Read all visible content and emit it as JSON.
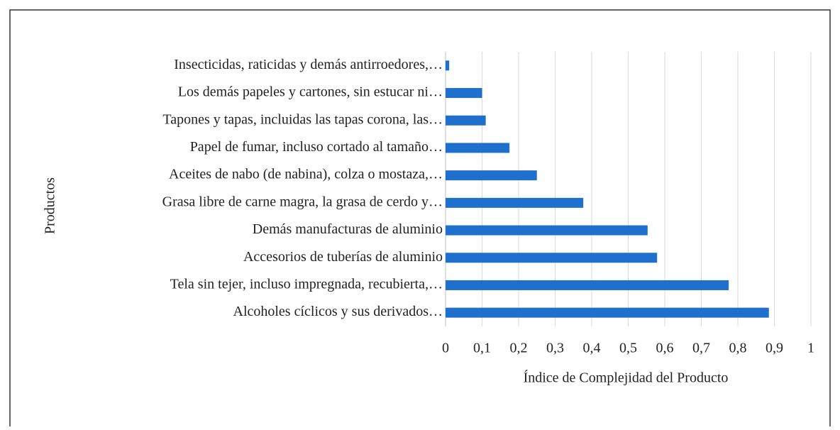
{
  "chart_data": {
    "type": "barh",
    "categories": [
      "Alcoholes cíclicos y sus derivados…",
      "Tela sin tejer, incluso impregnada, recubierta,…",
      "Accesorios de tuberías de aluminio",
      "Demás manufacturas de aluminio",
      "Grasa libre de carne magra, la grasa de cerdo y…",
      "Aceites de nabo (de nabina), colza o mostaza,…",
      "Papel de fumar, incluso cortado al tamaño…",
      "Tapones y tapas, incluidas las tapas corona, las…",
      "Los demás papeles y cartones, sin estucar ni…",
      "Insecticidas, raticidas y demás antirroedores,…"
    ],
    "values": [
      0.885,
      0.775,
      0.579,
      0.553,
      0.377,
      0.25,
      0.175,
      0.11,
      0.1,
      0.01
    ],
    "color": "#1f6fcc",
    "xlim": [
      0,
      1
    ],
    "xticks": [
      0,
      {
        "value": 0.1,
        "label": "0,1"
      },
      {
        "value": 0.2,
        "label": "0,2"
      },
      {
        "value": 0.3,
        "label": "0,3"
      },
      {
        "value": 0.4,
        "label": "0,4"
      },
      {
        "value": 0.5,
        "label": "0,5"
      },
      {
        "value": 0.6,
        "label": "0,6"
      },
      {
        "value": 0.7,
        "label": "0,7"
      },
      {
        "value": 0.8,
        "label": "0,8"
      },
      {
        "value": 0.9,
        "label": "0,9"
      },
      1
    ],
    "xlabel": "Índice de Complejidad del Producto",
    "ylabel": "Productos",
    "grid": true
  }
}
